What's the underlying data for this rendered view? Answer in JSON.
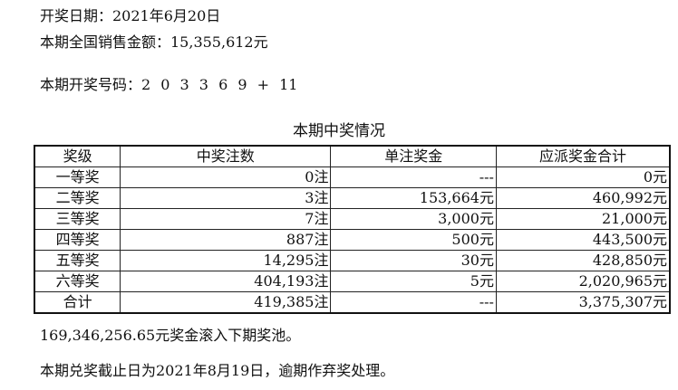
{
  "draw_date": "开奖日期：2021年6月20日",
  "sales": "本期全国销售金额：15,355,612元",
  "numbers": "本期开奖号码：2 0 3 3 6 9 + 11",
  "table_title": "本期中奖情况",
  "headers": [
    "奖级",
    "中奖注数",
    "单注奖金",
    "应派奖金合计"
  ],
  "rows": [
    [
      "一等奖",
      "0注",
      "---",
      "0元"
    ],
    [
      "二等奖",
      "3注",
      "153,664元",
      "460,992元"
    ],
    [
      "三等奖",
      "7注",
      "3,000元",
      "21,000元"
    ],
    [
      "四等奖",
      "887注",
      "500元",
      "443,500元"
    ],
    [
      "五等奖",
      "14,295注",
      "30元",
      "428,850元"
    ],
    [
      "六等奖",
      "404,193注",
      "5元",
      "2,020,965元"
    ],
    [
      "合计",
      "419,385注",
      "---",
      "3,375,307元"
    ]
  ],
  "rollover": "169,346,256.65元奖金滚入下期奖池。",
  "deadline": "本期兑奖截止日为2021年8月19日，逾期作弃奖处理。"
}
